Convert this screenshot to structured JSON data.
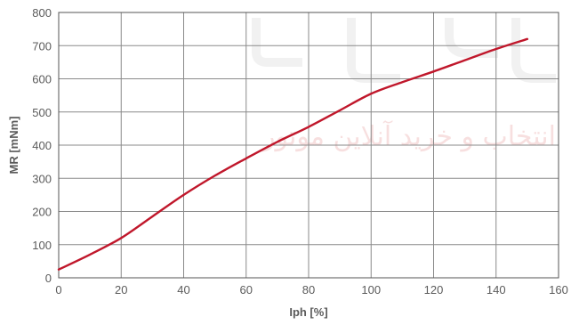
{
  "chart_data": {
    "type": "line",
    "xlabel": "Iph [%]",
    "ylabel": "MR [mNm]",
    "xlim": [
      0,
      160
    ],
    "ylim": [
      0,
      800
    ],
    "xticks": [
      "0",
      "20",
      "40",
      "60",
      "80",
      "100",
      "120",
      "140",
      "160"
    ],
    "yticks": [
      "0",
      "100",
      "200",
      "300",
      "400",
      "500",
      "600",
      "700",
      "800"
    ],
    "grid": true,
    "series": [
      {
        "color": "#c0172b",
        "x": [
          0,
          10,
          20,
          30,
          40,
          50,
          60,
          70,
          80,
          90,
          100,
          110,
          120,
          130,
          140,
          150
        ],
        "y": [
          25,
          70,
          120,
          185,
          250,
          308,
          360,
          410,
          455,
          505,
          555,
          590,
          622,
          656,
          690,
          720
        ]
      }
    ]
  },
  "watermark": {
    "text": "انتخاب و خرید آنلاین موتور"
  }
}
